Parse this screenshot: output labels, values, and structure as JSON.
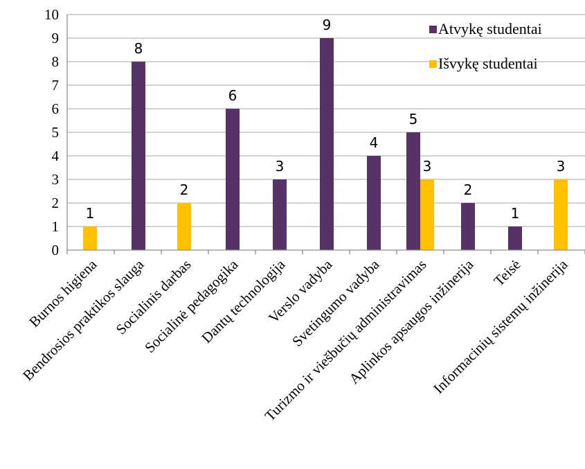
{
  "chart_data": {
    "type": "bar",
    "title": "",
    "xlabel": "",
    "ylabel": "",
    "ylim": [
      0,
      10
    ],
    "yticks": [
      0,
      1,
      2,
      3,
      4,
      5,
      6,
      7,
      8,
      9,
      10
    ],
    "grid": "horizontal",
    "legend_position": "top-right",
    "categories": [
      "Burnos higiena",
      "Bendrosios praktikos slauga",
      "Socialinis darbas",
      "Socialinė pedagogika",
      "Dantų technologija",
      "Verslo vadyba",
      "Svetingumo vadyba",
      "Turizmo ir viešbučių administravimas",
      "Aplinkos apsaugos inžinerija",
      "Teisė",
      "Informacinių sistemų inžinerija"
    ],
    "series": [
      {
        "name": "Atvykę studentai",
        "color": "#553366",
        "values": [
          null,
          8,
          null,
          6,
          3,
          9,
          4,
          5,
          2,
          1,
          null
        ]
      },
      {
        "name": "Išvykę studentai",
        "color": "#FFC000",
        "values": [
          1,
          null,
          2,
          null,
          null,
          null,
          null,
          3,
          null,
          null,
          3
        ]
      }
    ]
  }
}
